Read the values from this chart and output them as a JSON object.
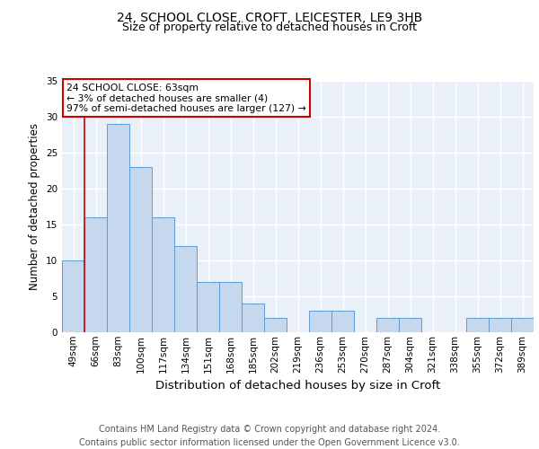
{
  "title1": "24, SCHOOL CLOSE, CROFT, LEICESTER, LE9 3HB",
  "title2": "Size of property relative to detached houses in Croft",
  "xlabel": "Distribution of detached houses by size in Croft",
  "ylabel": "Number of detached properties",
  "categories": [
    "49sqm",
    "66sqm",
    "83sqm",
    "100sqm",
    "117sqm",
    "134sqm",
    "151sqm",
    "168sqm",
    "185sqm",
    "202sqm",
    "219sqm",
    "236sqm",
    "253sqm",
    "270sqm",
    "287sqm",
    "304sqm",
    "321sqm",
    "338sqm",
    "355sqm",
    "372sqm",
    "389sqm"
  ],
  "values": [
    10,
    16,
    29,
    23,
    16,
    12,
    7,
    7,
    4,
    2,
    0,
    3,
    3,
    0,
    2,
    2,
    0,
    0,
    2,
    2,
    2
  ],
  "bar_color": "#c5d8ed",
  "bar_edge_color": "#5b9bd5",
  "annotation_text": "24 SCHOOL CLOSE: 63sqm\n← 3% of detached houses are smaller (4)\n97% of semi-detached houses are larger (127) →",
  "annotation_box_color": "#ffffff",
  "annotation_box_edge": "#cc0000",
  "vline_color": "#cc0000",
  "ylim": [
    0,
    35
  ],
  "yticks": [
    0,
    5,
    10,
    15,
    20,
    25,
    30,
    35
  ],
  "background_color": "#eaf0f8",
  "grid_color": "#ffffff",
  "footer": "Contains HM Land Registry data © Crown copyright and database right 2024.\nContains public sector information licensed under the Open Government Licence v3.0.",
  "title1_fontsize": 10,
  "title2_fontsize": 9,
  "xlabel_fontsize": 9.5,
  "ylabel_fontsize": 8.5,
  "footer_fontsize": 7,
  "tick_fontsize": 7.5
}
